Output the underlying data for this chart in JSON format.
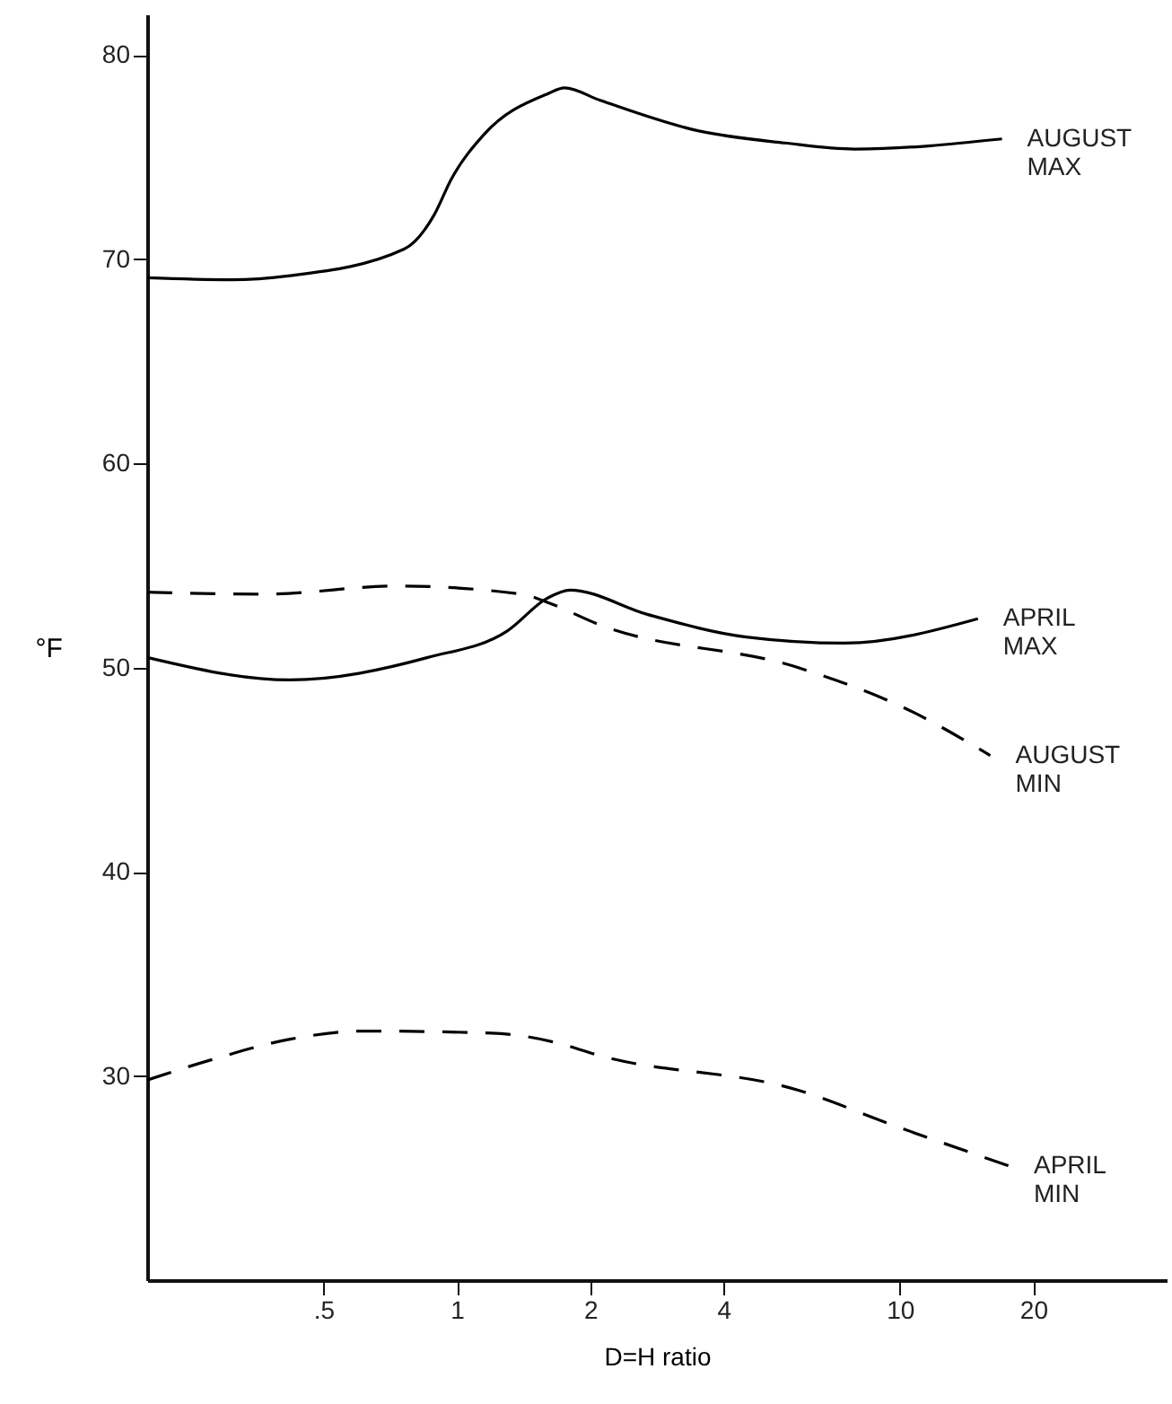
{
  "chart_data": {
    "type": "line",
    "xlabel": "D=H ratio",
    "ylabel": "°F",
    "xlim": [
      0.2,
      40
    ],
    "xticks": [
      {
        "value": 0.5,
        "label": ".5"
      },
      1,
      2,
      4,
      10,
      20
    ],
    "log": "x",
    "ylim": [
      20,
      82
    ],
    "yticks": [
      30,
      40,
      50,
      60,
      70,
      80
    ],
    "grid": false,
    "marker": "none",
    "series": [
      {
        "name": "AUGUST MAX",
        "color": "#000000",
        "line_style": "solid",
        "x": [
          0.2,
          0.31,
          0.42,
          0.76,
          0.89,
          0.97,
          1.15,
          1.6,
          1.75,
          2.1,
          3.5,
          5.5,
          7.9,
          17
        ],
        "values": [
          69.1,
          69,
          69.2,
          70.5,
          72.2,
          73.9,
          76.1,
          78.1,
          78.4,
          77.8,
          76.3,
          75.7,
          75.4,
          75.9
        ]
      },
      {
        "name": "APRIL MAX",
        "color": "#000000",
        "line_style": "solid",
        "x": [
          0.2,
          0.42,
          0.86,
          1.3,
          1.6,
          1.8,
          2.7,
          4.5,
          7.5,
          15
        ],
        "values": [
          50.5,
          49.4,
          50.5,
          51.8,
          53.4,
          53.8,
          52.6,
          51.5,
          51.2,
          52.4
        ]
      },
      {
        "name": "AUGUST MIN",
        "color": "#000000",
        "line_style": "dashed",
        "x": [
          0.2,
          0.37,
          0.73,
          1.4,
          1.6,
          2.1,
          5.9,
          10.3,
          16
        ],
        "values": [
          53.7,
          53.6,
          54,
          53.6,
          53.2,
          52.1,
          50,
          48,
          45.7
        ]
      },
      {
        "name": "APRIL MIN",
        "color": "#000000",
        "line_style": "dashed",
        "x": [
          0.2,
          0.28,
          0.42,
          0.62,
          1.2,
          1.7,
          2.1,
          5.9,
          9.9,
          17.6
        ],
        "values": [
          29.8,
          30.8,
          31.8,
          32.2,
          32.1,
          31.6,
          31,
          29.3,
          27.5,
          25.6
        ]
      }
    ]
  }
}
